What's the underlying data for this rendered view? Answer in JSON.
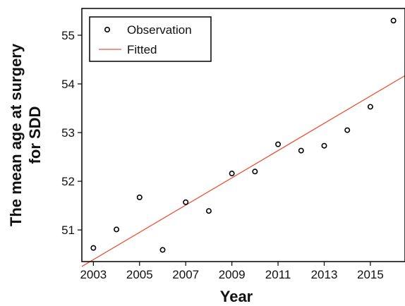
{
  "chart_data": {
    "type": "scatter",
    "xlabel": "Year",
    "ylabel_lines": [
      "The mean age at surgery",
      "for SDD"
    ],
    "xlim": [
      2002.5,
      2016.5
    ],
    "ylim": [
      50.35,
      55.55
    ],
    "xticks": [
      2003,
      2005,
      2007,
      2009,
      2011,
      2013,
      2015
    ],
    "yticks": [
      51,
      52,
      53,
      54,
      55
    ],
    "x": [
      2003,
      2004,
      2005,
      2006,
      2007,
      2008,
      2009,
      2010,
      2011,
      2012,
      2013,
      2014,
      2015,
      2016
    ],
    "series": [
      {
        "name": "Observation",
        "kind": "points",
        "values": [
          50.63,
          51.01,
          51.67,
          50.59,
          51.57,
          51.39,
          52.16,
          52.2,
          52.76,
          52.63,
          52.73,
          53.05,
          53.53,
          55.3
        ]
      },
      {
        "name": "Fitted",
        "kind": "line",
        "endpoints": [
          [
            2002.5,
            50.25
          ],
          [
            2016.5,
            54.17
          ]
        ]
      }
    ],
    "grid": false,
    "legend": "top-left",
    "colors": {
      "observation": "#000000",
      "fitted": "#e8543a"
    }
  }
}
